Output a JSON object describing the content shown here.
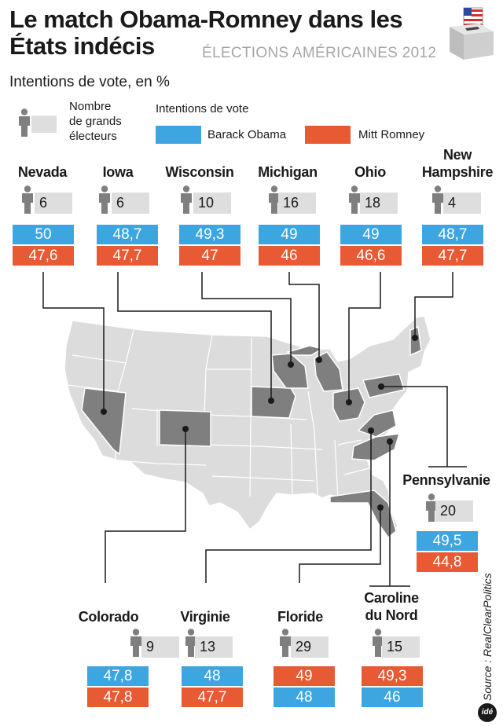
{
  "header": {
    "title_line1": "Le match Obama-Romney dans les",
    "title_line2": "États indécis",
    "subtitle": "ÉLECTIONS AMÉRICAINES 2012",
    "unit": "Intentions de vote, en %"
  },
  "legend": {
    "electors_line1": "Nombre",
    "electors_line2": "de grands",
    "electors_line3": "électeurs",
    "vote_title": "Intentions de vote",
    "obama": "Barack Obama",
    "romney": "Mitt Romney"
  },
  "colors": {
    "obama": "#3da5e0",
    "romney": "#e75a34",
    "swing_state": "#7f7f7f",
    "other_state": "#dcdcdc"
  },
  "chart_data": {
    "type": "table",
    "columns": [
      "État",
      "Grands électeurs",
      "Barack Obama",
      "Mitt Romney"
    ],
    "states": [
      {
        "name": "Nevada",
        "electors": "6",
        "obama": "50",
        "romney": "47,6"
      },
      {
        "name": "Iowa",
        "electors": "6",
        "obama": "48,7",
        "romney": "47,7"
      },
      {
        "name": "Wisconsin",
        "electors": "10",
        "obama": "49,3",
        "romney": "47"
      },
      {
        "name": "Michigan",
        "electors": "16",
        "obama": "49",
        "romney": "46"
      },
      {
        "name": "Ohio",
        "electors": "18",
        "obama": "49",
        "romney": "46,6"
      },
      {
        "name_line1": "New",
        "name_line2": "Hampshire",
        "electors": "4",
        "obama": "48,7",
        "romney": "47,7"
      },
      {
        "name": "Pennsylvanie",
        "electors": "20",
        "obama": "49,5",
        "romney": "44,8"
      },
      {
        "name": "Colorado",
        "electors": "9",
        "obama": "47,8",
        "romney": "47,8"
      },
      {
        "name": "Virginie",
        "electors": "13",
        "obama": "48",
        "romney": "47,7"
      },
      {
        "name": "Floride",
        "electors": "29",
        "obama": "48",
        "romney": "49"
      },
      {
        "name_line1": "Caroline",
        "name_line2": "du Nord",
        "electors": "15",
        "obama": "46",
        "romney": "49,3"
      }
    ]
  },
  "source": "Source : RealClearPolitics",
  "logo": "idé"
}
